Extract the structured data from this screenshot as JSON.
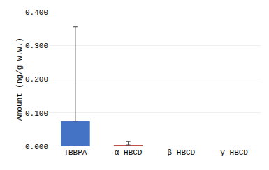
{
  "chart_data": {
    "type": "bar",
    "categories": [
      "TBBPA",
      "α-HBCD",
      "β-HBCD",
      "γ-HBCD"
    ],
    "values": [
      0.075,
      0.004,
      0.0,
      0.0
    ],
    "errors_up": [
      0.28,
      0.01,
      0.0,
      0.0
    ],
    "errors_down": [
      0.0,
      0.0,
      0.0,
      0.0
    ],
    "colors": [
      "#4472C4",
      "#C0504D",
      "#4472C4",
      "#4472C4"
    ],
    "ylabel": "Amount (ng/g w.w.)",
    "ylim": [
      0.0,
      0.4
    ],
    "yticks": [
      {
        "value": 0.0,
        "label": "0.000"
      },
      {
        "value": 0.1,
        "label": "0.100"
      },
      {
        "value": 0.2,
        "label": "0.200"
      },
      {
        "value": 0.3,
        "label": "0.300"
      },
      {
        "value": 0.4,
        "label": "0.400"
      }
    ],
    "grid": true
  }
}
